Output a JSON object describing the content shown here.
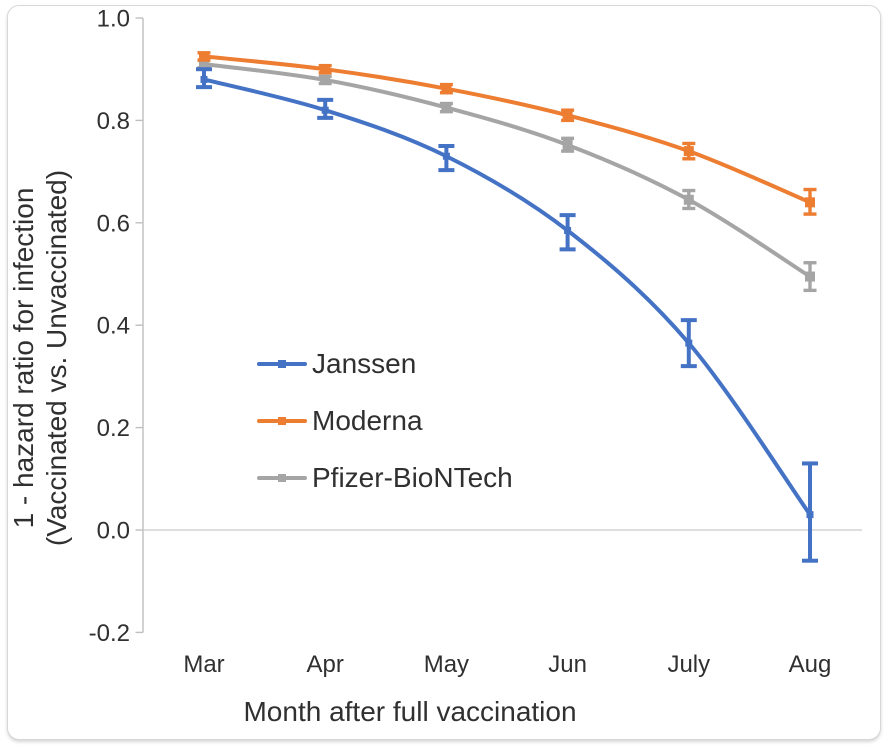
{
  "chart_data": {
    "type": "line",
    "title": "",
    "xlabel": "Month after full vaccination",
    "ylabel": "1 - hazard ratio for infection (Vaccinated vs. Unvaccinated)",
    "ylabel_line1": "1 - hazard ratio for infection",
    "ylabel_line2": "(Vaccinated vs. Unvaccinated)",
    "categories": [
      "Mar",
      "Apr",
      "May",
      "Jun",
      "July",
      "Aug"
    ],
    "y_ticks": [
      "1.0",
      "0.8",
      "0.6",
      "0.4",
      "0.2",
      "0.0",
      "-0.2"
    ],
    "ylim": [
      -0.2,
      1.0
    ],
    "grid": "horizontal line at y=0 only",
    "legend_position": "inside plot, center-left",
    "axis_color": "#BFBFBF",
    "gridline_color": "#C9C9C9",
    "text_color": "#303030",
    "series": [
      {
        "name": "Janssen",
        "color": "#4472C4",
        "values": [
          0.88,
          0.82,
          0.73,
          0.585,
          0.365,
          0.03
        ],
        "ci_low": [
          0.865,
          0.805,
          0.703,
          0.548,
          0.32,
          -0.06
        ],
        "ci_high": [
          0.9,
          0.84,
          0.75,
          0.615,
          0.41,
          0.13
        ]
      },
      {
        "name": "Moderna",
        "color": "#ED7D31",
        "values": [
          0.925,
          0.9,
          0.862,
          0.81,
          0.74,
          0.64
        ],
        "ci_low": [
          0.918,
          0.893,
          0.854,
          0.8,
          0.725,
          0.617
        ],
        "ci_high": [
          0.932,
          0.907,
          0.87,
          0.82,
          0.755,
          0.665
        ]
      },
      {
        "name": "Pfizer-BioNTech",
        "color": "#A5A5A5",
        "values": [
          0.91,
          0.879,
          0.825,
          0.752,
          0.645,
          0.495
        ],
        "ci_low": [
          0.903,
          0.872,
          0.817,
          0.74,
          0.628,
          0.468
        ],
        "ci_high": [
          0.917,
          0.886,
          0.833,
          0.765,
          0.663,
          0.522
        ]
      }
    ]
  }
}
